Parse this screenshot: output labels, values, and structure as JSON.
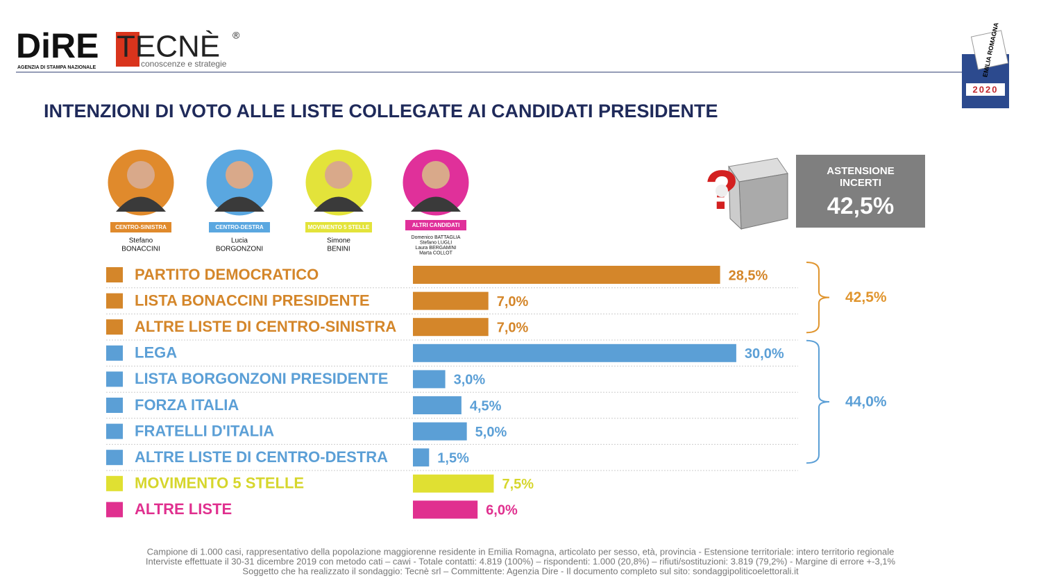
{
  "header": {
    "logo1": "DiRE",
    "logo1_sub": "AGENZIA DI STAMPA NAZIONALE",
    "logo2": "TECNÈ",
    "logo2_mark": "®",
    "logo2_sub": "conoscenze e strategie",
    "badge_region": "EMILIA ROMAGNA",
    "badge_year": "2020"
  },
  "candidates": [
    {
      "tag": "CENTRO-SINISTRA",
      "names": [
        "Stefano",
        "BONACCINI"
      ],
      "color": "#e08a2c"
    },
    {
      "tag": "CENTRO-DESTRA",
      "names": [
        "Lucia",
        "BORGONZONI"
      ],
      "color": "#5aa7e0"
    },
    {
      "tag": "MOVIMENTO 5 STELLE",
      "names": [
        "Simone",
        "BENINI"
      ],
      "color": "#e3e33a"
    },
    {
      "tag": "ALTRI CANDIDATI",
      "names": [
        "Domenico BATTAGLIA",
        "Stefano LUGLI",
        "Laura BERGAMINI",
        "Marta COLLOT"
      ],
      "color": "#e0309a"
    }
  ],
  "abstention": {
    "label": "ASTENSIONE INCERTI",
    "value": 42.5,
    "value_label": "42,5%"
  },
  "chart_data": {
    "type": "bar",
    "orientation": "horizontal",
    "title": "INTENZIONI DI VOTO ALLE LISTE COLLEGATE AI CANDIDATI PRESIDENTE",
    "categories": [
      "PARTITO DEMOCRATICO",
      "LISTA BONACCINI PRESIDENTE",
      "ALTRE LISTE DI CENTRO-SINISTRA",
      "LEGA",
      "LISTA BORGONZONI PRESIDENTE",
      "FORZA ITALIA",
      "FRATELLI D'ITALIA",
      "ALTRE LISTE DI CENTRO-DESTRA",
      "MOVIMENTO 5 STELLE",
      "ALTRE LISTE"
    ],
    "values": [
      28.5,
      7.0,
      7.0,
      30.0,
      3.0,
      4.5,
      5.0,
      1.5,
      7.5,
      6.0
    ],
    "value_labels": [
      "28,5%",
      "7,0%",
      "7,0%",
      "30,0%",
      "3,0%",
      "4,5%",
      "5,0%",
      "1,5%",
      "7,5%",
      "6,0%"
    ],
    "colors": [
      "#d4862a",
      "#d4862a",
      "#d4862a",
      "#5b9fd6",
      "#5b9fd6",
      "#5b9fd6",
      "#5b9fd6",
      "#5b9fd6",
      "#e0e032",
      "#e0308f"
    ],
    "groups": [
      {
        "value": 42.5,
        "label": "42,5%",
        "color": "#e0952e",
        "from": 0,
        "to": 2
      },
      {
        "value": 44.0,
        "label": "44,0%",
        "color": "#5b9fd6",
        "from": 3,
        "to": 7
      }
    ]
  },
  "footer": [
    "Campione di 1.000 casi, rappresentativo della popolazione maggiorenne residente in Emilia Romagna, articolato per sesso, età, provincia - Estensione territoriale: intero territorio regionale",
    "Interviste effettuate il 30-31 dicembre 2019 con metodo cati – cawi - Totale contatti: 4.819 (100%) – rispondenti: 1.000 (20,8%) – rifiuti/sostituzioni: 3.819 (79,2%) - Margine di errore +-3,1%",
    "Soggetto che ha realizzato il sondaggio: Tecnè srl – Committente: Agenzia Dire - Il documento completo sul sito: sondaggipoliticoelettorali.it"
  ]
}
